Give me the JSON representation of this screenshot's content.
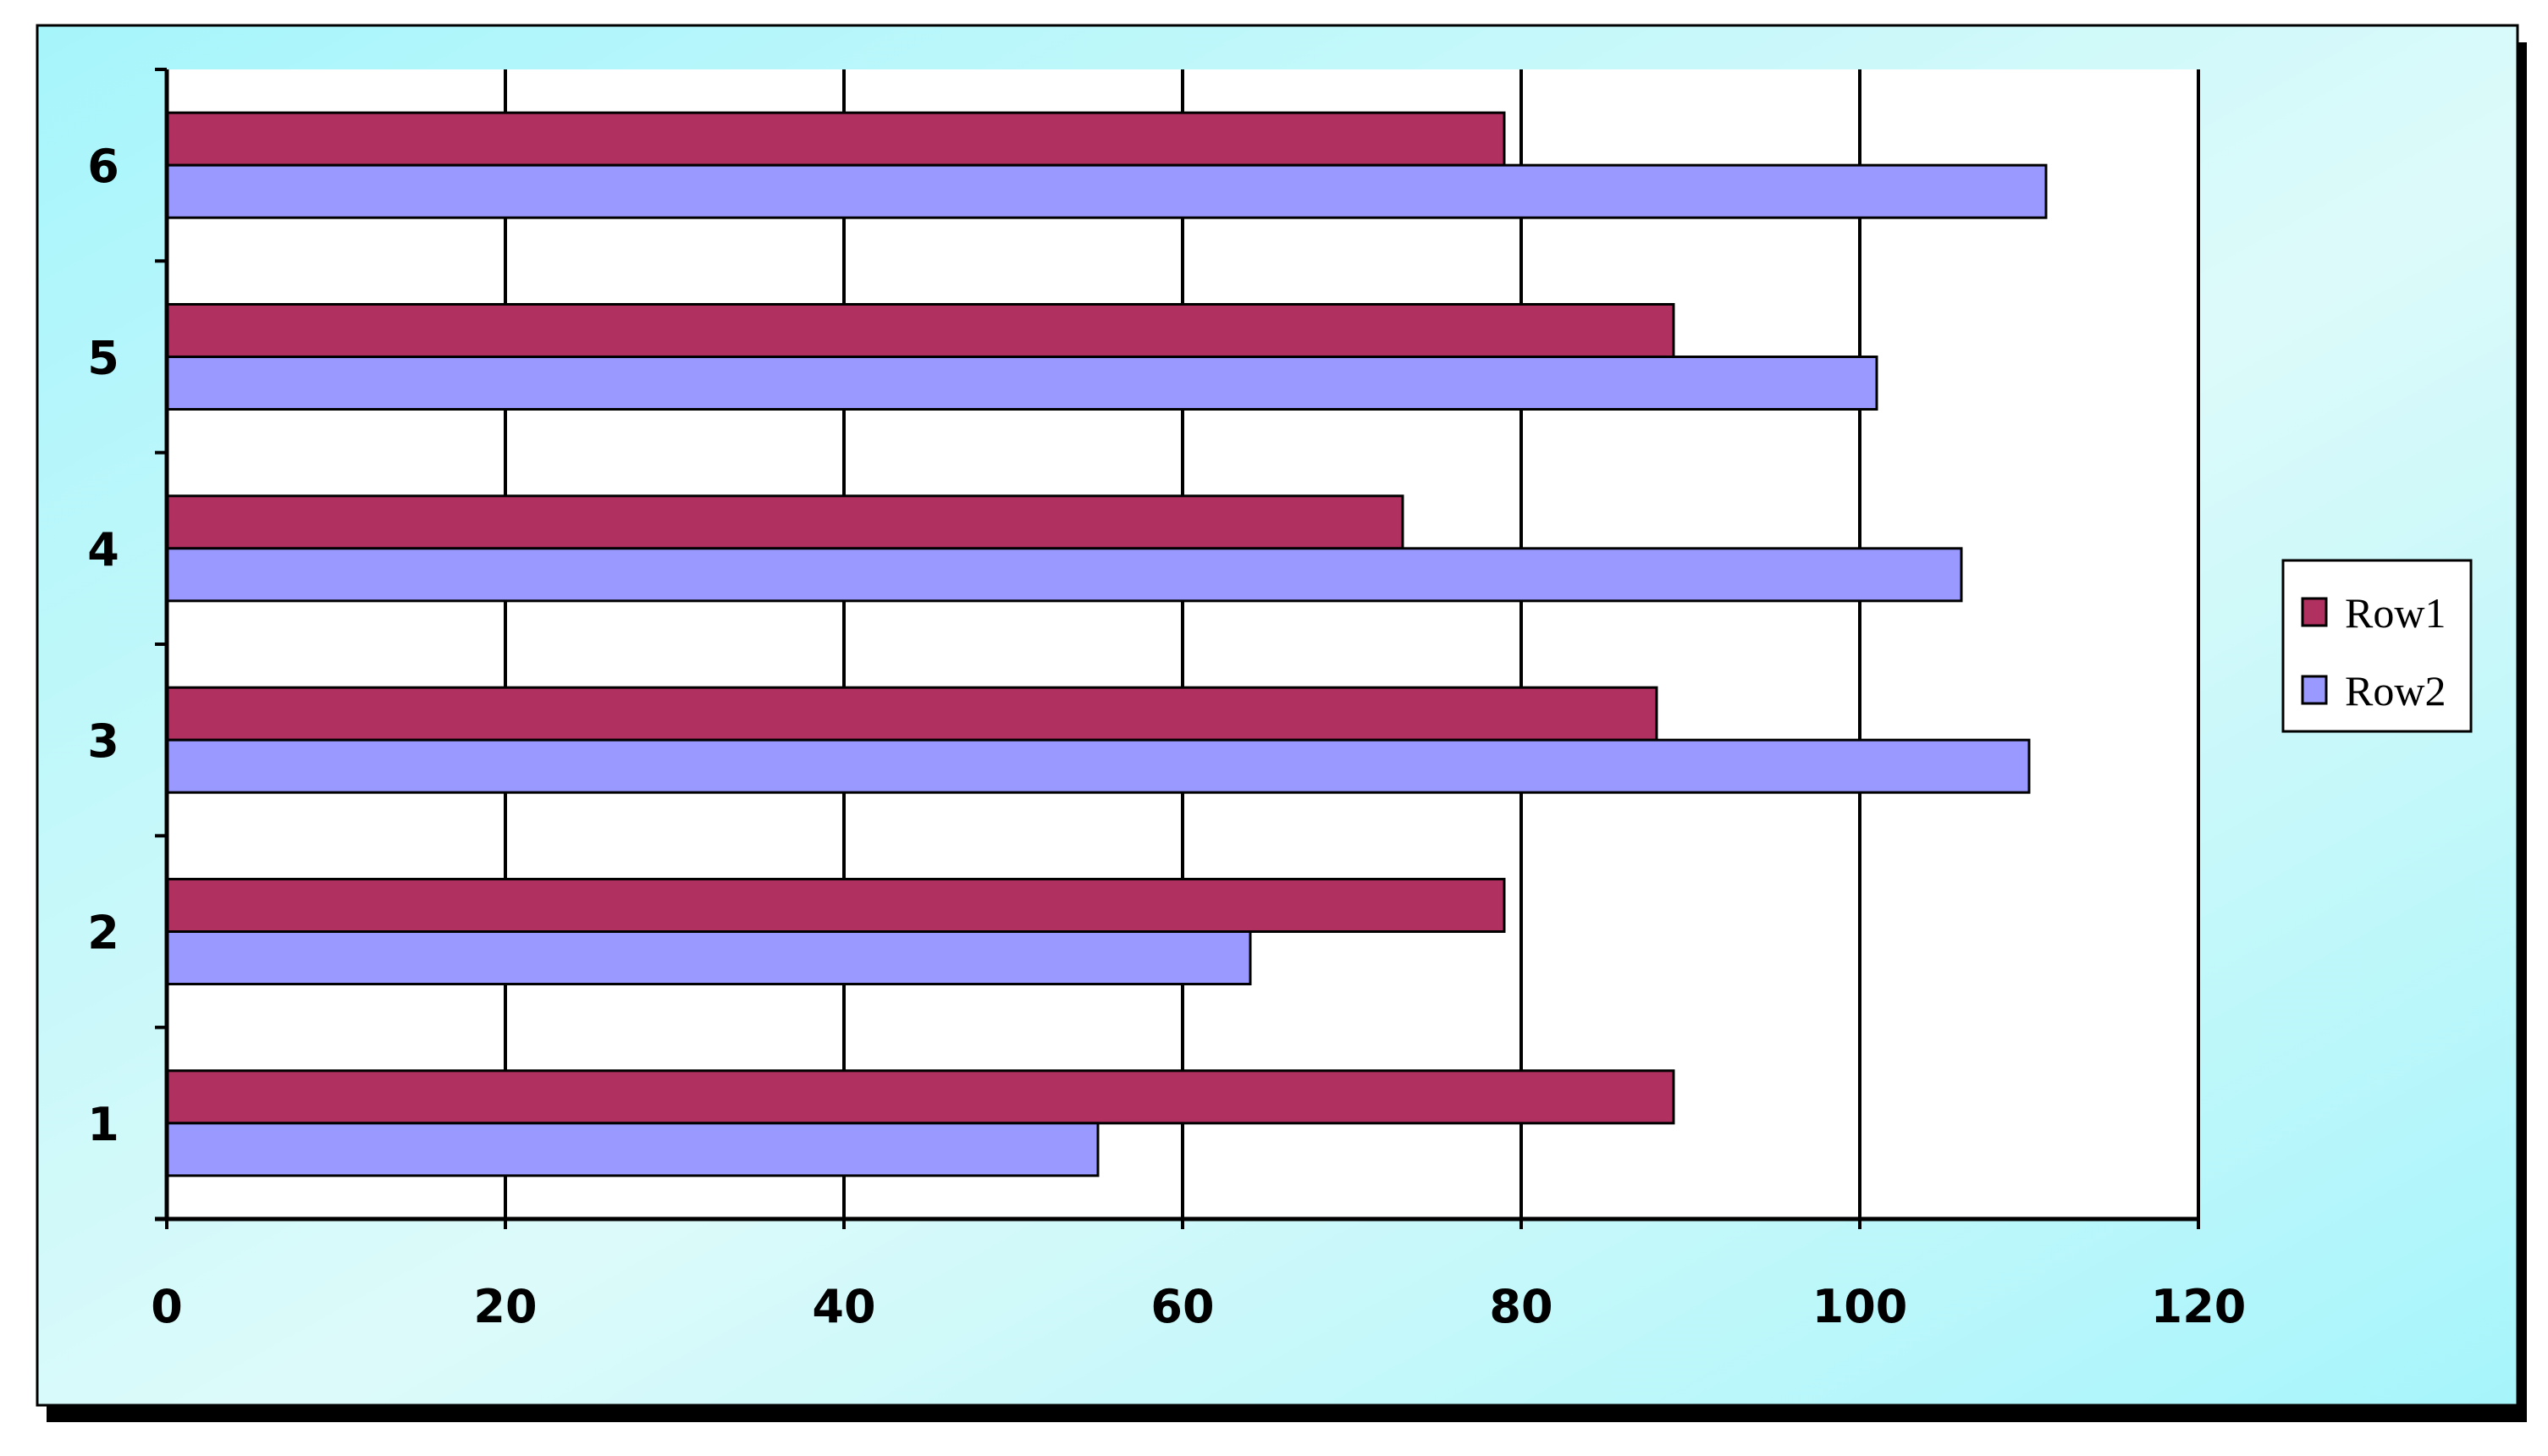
{
  "chart_data": {
    "type": "bar",
    "orientation": "horizontal",
    "categories": [
      "1",
      "2",
      "3",
      "4",
      "5",
      "6"
    ],
    "series": [
      {
        "name": "Row1",
        "values": [
          89,
          79,
          88,
          73,
          89,
          79
        ]
      },
      {
        "name": "Row2",
        "values": [
          55,
          64,
          110,
          106,
          101,
          111
        ]
      }
    ],
    "title": "",
    "xlabel": "",
    "ylabel": "",
    "xlim": [
      0,
      120
    ],
    "x_ticks": [
      "0",
      "20",
      "40",
      "60",
      "80",
      "100",
      "120"
    ],
    "grid": "vertical",
    "legend_position": "right",
    "colors": {
      "row1": "#b03060",
      "row2": "#9999ff",
      "background_light": "#ddfafa",
      "background_accent": "#a6f5fb",
      "plot_background": "#ffffff"
    }
  }
}
